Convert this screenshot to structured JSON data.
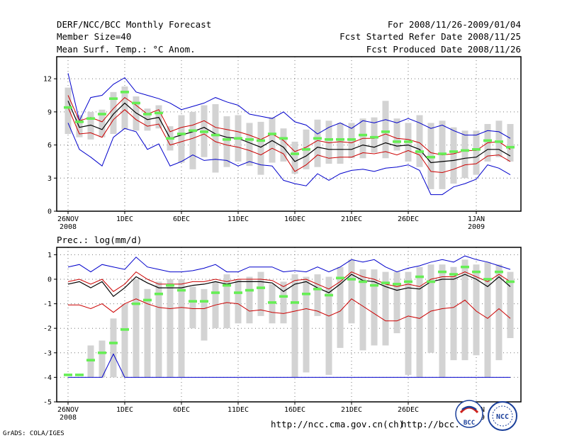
{
  "header": {
    "title": "DERF/NCC/BCC Monthly Forecast",
    "member_size": "Member Size=40",
    "period": "For 2008/11/26-2009/01/04",
    "started": "Fcst Started Refer Date 2008/11/25",
    "produced": "Fcst Produced Date 2008/11/26"
  },
  "footer": {
    "url1": "http://ncc.cma.gov.cn(ch)",
    "url2": "http://bcc.",
    "credit": "GrADS: COLA/IGES",
    "logo_bcc_text": "BCC",
    "logo_ncc_text": "NCC"
  },
  "colors": {
    "box": "#d3d3d3",
    "median": "#66ee55",
    "mean": "#000000",
    "sigma": "#cc0000",
    "extreme": "#0000cc",
    "grid": "#777777"
  },
  "chart_data": [
    {
      "type": "line",
      "title": "Mean Surf. Temp.: °C Anom.",
      "ylim": [
        0,
        14
      ],
      "yticks": [
        0,
        3,
        6,
        9,
        12
      ],
      "x_start_day": 0,
      "x_end_day": 39,
      "xticks": [
        {
          "day": 0,
          "label": "26NOV",
          "sublabel": "2008"
        },
        {
          "day": 5,
          "label": "1DEC",
          "sublabel": ""
        },
        {
          "day": 10,
          "label": "6DEC",
          "sublabel": ""
        },
        {
          "day": 15,
          "label": "11DEC",
          "sublabel": ""
        },
        {
          "day": 20,
          "label": "16DEC",
          "sublabel": ""
        },
        {
          "day": 25,
          "label": "21DEC",
          "sublabel": ""
        },
        {
          "day": 30,
          "label": "26DEC",
          "sublabel": ""
        },
        {
          "day": 36,
          "label": "1JAN",
          "sublabel": "2009"
        }
      ],
      "series": [
        {
          "name": "max",
          "values": [
            12.5,
            8.2,
            10.3,
            10.5,
            11.5,
            12.1,
            10.8,
            10.5,
            10.2,
            9.8,
            9.2,
            9.5,
            9.8,
            10.3,
            9.9,
            9.6,
            8.8,
            8.6,
            8.4,
            9.0,
            8.1,
            7.8,
            7.0,
            7.6,
            8.0,
            7.5,
            8.2,
            8.0,
            8.3,
            8.0,
            8.4,
            8.0,
            7.5,
            7.8,
            7.3,
            6.9,
            6.9,
            7.3,
            7.2,
            6.6
          ]
        },
        {
          "name": "mean_plus_sigma",
          "values": [
            10.5,
            8.2,
            8.5,
            8.1,
            9.3,
            10.3,
            9.6,
            8.8,
            9.2,
            7.2,
            7.6,
            7.8,
            8.2,
            7.6,
            7.4,
            7.2,
            6.9,
            6.5,
            7.0,
            6.4,
            5.4,
            5.8,
            6.4,
            6.2,
            6.3,
            6.2,
            6.6,
            6.6,
            7.0,
            6.6,
            6.5,
            6.2,
            5.3,
            5.1,
            5.2,
            5.5,
            5.5,
            6.2,
            6.3,
            5.6
          ]
        },
        {
          "name": "mean",
          "values": [
            10.0,
            7.6,
            7.8,
            7.4,
            8.8,
            9.8,
            8.9,
            8.3,
            8.5,
            6.6,
            6.9,
            7.2,
            7.6,
            7.0,
            6.7,
            6.6,
            6.2,
            5.8,
            6.4,
            5.8,
            4.5,
            5.0,
            5.8,
            5.6,
            5.6,
            5.6,
            6.0,
            5.8,
            6.2,
            5.9,
            6.0,
            5.6,
            4.4,
            4.5,
            4.6,
            4.8,
            4.9,
            5.6,
            5.6,
            5.0
          ]
        },
        {
          "name": "mean_minus_sigma",
          "values": [
            9.4,
            7.0,
            7.1,
            6.7,
            8.3,
            9.2,
            8.3,
            7.7,
            7.9,
            6.0,
            6.3,
            6.6,
            7.0,
            6.3,
            6.0,
            5.8,
            5.5,
            5.1,
            5.7,
            5.2,
            3.6,
            4.2,
            5.1,
            4.8,
            4.9,
            4.9,
            5.3,
            5.2,
            5.4,
            5.1,
            5.5,
            5.1,
            3.6,
            3.5,
            3.8,
            4.2,
            4.3,
            5.0,
            5.1,
            4.5
          ]
        },
        {
          "name": "min",
          "values": [
            8.0,
            5.6,
            4.9,
            4.1,
            6.7,
            7.5,
            7.2,
            5.6,
            6.1,
            4.1,
            4.5,
            5.1,
            4.6,
            4.7,
            4.6,
            4.1,
            4.5,
            4.2,
            4.1,
            2.8,
            2.5,
            2.3,
            3.4,
            2.8,
            3.4,
            3.7,
            3.8,
            3.6,
            3.9,
            4.0,
            4.2,
            3.7,
            1.5,
            1.5,
            2.2,
            2.5,
            2.9,
            4.2,
            3.9,
            3.3
          ]
        },
        {
          "name": "median",
          "values": [
            9.4,
            8.1,
            8.4,
            8.8,
            10.2,
            10.8,
            9.8,
            8.8,
            8.9,
            6.6,
            7.0,
            7.3,
            7.2,
            6.9,
            6.5,
            6.6,
            6.5,
            6.4,
            7.0,
            6.6,
            5.2,
            5.6,
            6.6,
            6.5,
            6.5,
            6.5,
            6.9,
            6.7,
            7.2,
            6.3,
            6.3,
            5.4,
            4.9,
            5.2,
            5.4,
            5.5,
            5.6,
            6.4,
            6.3,
            5.8
          ]
        },
        {
          "name": "box_upper",
          "values": [
            11.2,
            8.7,
            9.0,
            9.2,
            10.8,
            11.3,
            10.4,
            9.3,
            9.6,
            7.7,
            8.7,
            9.0,
            9.6,
            9.7,
            8.6,
            8.7,
            8.0,
            8.1,
            8.5,
            7.5,
            6.3,
            7.4,
            8.3,
            8.2,
            8.0,
            8.0,
            8.4,
            8.5,
            10.0,
            8.4,
            8.0,
            8.7,
            8.0,
            8.2,
            7.6,
            7.3,
            7.3,
            7.9,
            8.2,
            7.9
          ]
        },
        {
          "name": "box_lower",
          "values": [
            7.0,
            6.7,
            6.5,
            6.7,
            7.0,
            7.4,
            7.3,
            7.3,
            7.5,
            5.5,
            4.4,
            3.8,
            4.9,
            3.5,
            4.0,
            4.5,
            4.1,
            3.3,
            4.4,
            4.5,
            3.4,
            3.8,
            4.0,
            4.3,
            4.3,
            4.8,
            4.8,
            5.3,
            4.8,
            5.5,
            4.5,
            4.0,
            2.0,
            2.0,
            2.5,
            3.0,
            3.3,
            4.5,
            4.9,
            4.5
          ]
        }
      ]
    },
    {
      "type": "line",
      "title": "Prec.: log(mm/d)",
      "ylim": [
        -5,
        1.3
      ],
      "yticks": [
        -5,
        -4,
        -3,
        -2,
        -1,
        0,
        1
      ],
      "x_start_day": 0,
      "x_end_day": 39,
      "xticks": [
        {
          "day": 0,
          "label": "26NOV",
          "sublabel": "2008"
        },
        {
          "day": 5,
          "label": "1DEC",
          "sublabel": ""
        },
        {
          "day": 10,
          "label": "6DEC",
          "sublabel": ""
        },
        {
          "day": 15,
          "label": "11DEC",
          "sublabel": ""
        },
        {
          "day": 20,
          "label": "16DEC",
          "sublabel": ""
        },
        {
          "day": 25,
          "label": "21DEC",
          "sublabel": ""
        },
        {
          "day": 30,
          "label": "26DEC",
          "sublabel": ""
        },
        {
          "day": 36,
          "label": "1JAN",
          "sublabel": "2009"
        }
      ],
      "series": [
        {
          "name": "max",
          "values": [
            0.5,
            0.6,
            0.3,
            0.6,
            0.5,
            0.4,
            0.9,
            0.5,
            0.4,
            0.3,
            0.3,
            0.35,
            0.45,
            0.6,
            0.3,
            0.3,
            0.5,
            0.5,
            0.5,
            0.3,
            0.35,
            0.3,
            0.5,
            0.3,
            0.5,
            0.8,
            0.7,
            0.8,
            0.5,
            0.3,
            0.45,
            0.55,
            0.7,
            0.8,
            0.7,
            0.95,
            0.8,
            0.7,
            0.55,
            0.4
          ]
        },
        {
          "name": "mean_plus_sigma",
          "values": [
            -0.1,
            0.0,
            -0.2,
            0.0,
            -0.5,
            -0.2,
            0.3,
            0.0,
            -0.2,
            -0.2,
            -0.2,
            -0.1,
            -0.1,
            0.0,
            -0.1,
            0.0,
            0.0,
            0.0,
            -0.05,
            -0.3,
            -0.05,
            0.0,
            -0.2,
            -0.4,
            -0.1,
            0.3,
            0.1,
            0.0,
            -0.2,
            -0.3,
            -0.2,
            -0.3,
            0.0,
            0.1,
            0.1,
            0.3,
            0.1,
            -0.1,
            0.2,
            -0.1
          ]
        },
        {
          "name": "mean",
          "values": [
            -0.2,
            -0.1,
            -0.35,
            -0.1,
            -0.7,
            -0.35,
            0.1,
            -0.15,
            -0.35,
            -0.35,
            -0.35,
            -0.25,
            -0.2,
            -0.1,
            -0.2,
            -0.1,
            -0.1,
            -0.1,
            -0.15,
            -0.5,
            -0.2,
            -0.1,
            -0.35,
            -0.55,
            -0.2,
            0.2,
            -0.05,
            -0.1,
            -0.3,
            -0.45,
            -0.35,
            -0.4,
            -0.1,
            0.0,
            0.0,
            0.2,
            0.0,
            -0.3,
            0.1,
            -0.3
          ]
        },
        {
          "name": "mean_minus_sigma",
          "values": [
            -1.05,
            -1.05,
            -1.2,
            -1.0,
            -1.35,
            -1.0,
            -0.8,
            -1.0,
            -1.15,
            -1.2,
            -1.15,
            -1.2,
            -1.2,
            -1.05,
            -0.95,
            -1.0,
            -1.3,
            -1.25,
            -1.35,
            -1.4,
            -1.3,
            -1.2,
            -1.3,
            -1.5,
            -1.3,
            -0.8,
            -1.1,
            -1.4,
            -1.7,
            -1.7,
            -1.5,
            -1.6,
            -1.3,
            -1.2,
            -1.15,
            -0.85,
            -1.3,
            -1.6,
            -1.2,
            -1.6
          ]
        },
        {
          "name": "min",
          "values": [
            -4.0,
            -4.0,
            -4.0,
            -4.0,
            -3.05,
            -4.0,
            -4.0,
            -4.0,
            -4.0,
            -4.0,
            -4.0,
            -4.0,
            -4.0,
            -4.0,
            -4.0,
            -4.0,
            -4.0,
            -4.0,
            -4.0,
            -4.0,
            -4.0,
            -4.0,
            -4.0,
            -4.0,
            -4.0,
            -4.0,
            -4.0,
            -4.0,
            -4.0,
            -4.0,
            -4.0,
            -4.0,
            -4.0,
            -4.0,
            -4.0,
            -4.0,
            -4.0,
            -4.0,
            -4.0,
            -4.0
          ]
        },
        {
          "name": "median",
          "values": [
            -3.9,
            -3.9,
            -3.3,
            -3.0,
            -2.6,
            -2.05,
            -1.0,
            -0.85,
            -0.6,
            -0.25,
            -0.45,
            -0.9,
            -0.9,
            -0.55,
            -0.25,
            -0.55,
            -0.45,
            -0.35,
            -0.95,
            -0.7,
            -0.95,
            -0.6,
            -0.4,
            -0.65,
            0.05,
            0.0,
            -0.1,
            -0.25,
            -0.15,
            -0.2,
            -0.1,
            0.1,
            -0.1,
            0.3,
            0.2,
            0.5,
            0.3,
            0.0,
            0.3,
            -0.1
          ]
        },
        {
          "name": "box_upper",
          "values": [
            null,
            null,
            -2.7,
            -2.5,
            -1.6,
            -1.0,
            0.0,
            -0.4,
            -0.1,
            0.0,
            0.0,
            -0.3,
            -0.4,
            -0.1,
            0.2,
            0.0,
            0.1,
            0.3,
            -0.2,
            -0.1,
            0.2,
            0.1,
            0.2,
            0.1,
            0.5,
            0.8,
            0.4,
            0.4,
            0.3,
            0.3,
            0.3,
            0.5,
            0.6,
            0.6,
            0.5,
            0.8,
            0.6,
            0.7,
            0.6,
            0.3
          ]
        },
        {
          "name": "box_lower",
          "values": [
            null,
            null,
            -4.0,
            -4.0,
            -4.0,
            -4.0,
            -4.0,
            -4.0,
            -4.0,
            -4.0,
            -4.0,
            -2.0,
            -2.5,
            -2.0,
            -2.0,
            -1.8,
            -1.8,
            -1.5,
            -1.8,
            -1.8,
            -4.0,
            -3.8,
            -1.5,
            -3.9,
            -2.8,
            -1.8,
            -2.9,
            -2.7,
            -2.7,
            -2.2,
            -3.9,
            -4.0,
            -3.0,
            -4.0,
            -3.3,
            -3.3,
            -3.1,
            -4.0,
            -3.3,
            -2.4
          ]
        }
      ]
    }
  ]
}
